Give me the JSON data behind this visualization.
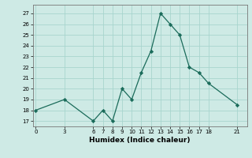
{
  "x": [
    0,
    3,
    6,
    7,
    8,
    9,
    10,
    11,
    12,
    13,
    14,
    15,
    16,
    17,
    18,
    21
  ],
  "y": [
    18,
    19,
    17,
    18,
    17,
    20,
    19,
    21.5,
    23.5,
    27,
    26,
    25,
    22,
    21.5,
    20.5,
    18.5
  ],
  "xticks": [
    0,
    3,
    6,
    7,
    8,
    9,
    10,
    11,
    12,
    13,
    14,
    15,
    16,
    17,
    18,
    21
  ],
  "yticks": [
    17,
    18,
    19,
    20,
    21,
    22,
    23,
    24,
    25,
    26,
    27
  ],
  "xlim": [
    -0.3,
    22.0
  ],
  "ylim": [
    16.5,
    27.8
  ],
  "xlabel": "Humidex (Indice chaleur)",
  "line_color": "#1a6b5a",
  "marker": "D",
  "marker_size": 2.2,
  "linewidth": 0.9,
  "bg_color": "#ceeae5",
  "grid_color": "#a8d5ce",
  "tick_fontsize": 5.0,
  "xlabel_fontsize": 6.5
}
